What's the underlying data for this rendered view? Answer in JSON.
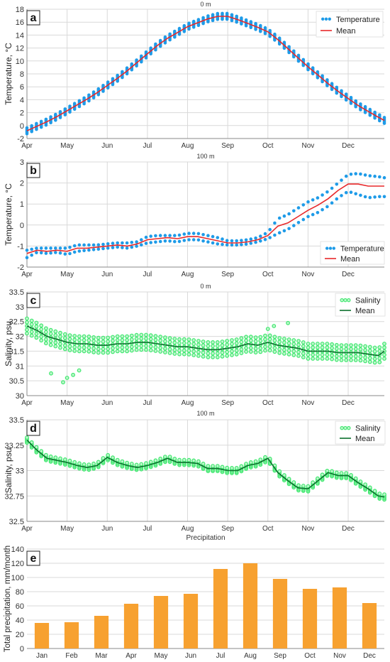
{
  "chart_data": [
    {
      "panel": "a",
      "type": "scatter",
      "title": "0 m",
      "ylabel": "Temperature, °C",
      "ylim": [
        -2,
        18
      ],
      "yticks": [
        -2,
        0,
        2,
        4,
        6,
        8,
        10,
        12,
        14,
        16,
        18
      ],
      "xticklabels": [
        "Apr",
        "May",
        "Jun",
        "Jul",
        "Aug",
        "Sep",
        "Oct",
        "Nov",
        "Dec"
      ],
      "xlim": [
        0,
        8.9
      ],
      "grid": true,
      "legend": "top-right",
      "colors": {
        "points": "#1e9be8",
        "line": "#e8282a"
      },
      "series": [
        {
          "name": "Temperature",
          "kind": "points",
          "spread": 0.9
        },
        {
          "name": "Mean",
          "kind": "line",
          "x": [
            0,
            0.25,
            0.5,
            0.75,
            1,
            1.25,
            1.5,
            1.75,
            2,
            2.25,
            2.5,
            2.75,
            3,
            3.25,
            3.5,
            3.75,
            4,
            4.25,
            4.5,
            4.75,
            5,
            5.25,
            5.5,
            5.75,
            6,
            6.25,
            6.5,
            6.75,
            7,
            7.25,
            7.5,
            7.75,
            8,
            8.25,
            8.5,
            8.75,
            8.9
          ],
          "y": [
            -0.8,
            -0.1,
            0.6,
            1.4,
            2.3,
            3.2,
            4.1,
            5.1,
            6.2,
            7.3,
            8.5,
            9.8,
            11.1,
            12.4,
            13.5,
            14.4,
            15.3,
            15.9,
            16.5,
            16.9,
            16.9,
            16.4,
            15.8,
            15.2,
            14.5,
            13.3,
            11.9,
            10.5,
            9.1,
            7.8,
            6.5,
            5.3,
            4.2,
            3.1,
            2.2,
            1.3,
            0.8
          ]
        }
      ]
    },
    {
      "panel": "b",
      "type": "scatter",
      "title": "100 m",
      "ylabel": "Temperature, °C",
      "ylim": [
        -2,
        3
      ],
      "yticks": [
        -2,
        -1,
        0,
        1,
        2,
        3
      ],
      "xticklabels": [
        "Apr",
        "May",
        "Jun",
        "Jul",
        "Aug",
        "Sep",
        "Oct",
        "Nov",
        "Dec"
      ],
      "xlim": [
        0,
        8.9
      ],
      "grid": true,
      "legend": "bottom-right",
      "colors": {
        "points": "#1e9be8",
        "line": "#e8282a"
      },
      "series": [
        {
          "name": "Temperature",
          "kind": "points",
          "spread": 0.15
        },
        {
          "name": "Mean",
          "kind": "line",
          "x": [
            0,
            0.25,
            0.5,
            0.75,
            1,
            1.25,
            1.5,
            1.75,
            2,
            2.25,
            2.5,
            2.75,
            3,
            3.25,
            3.5,
            3.75,
            4,
            4.25,
            4.5,
            4.75,
            5,
            5.25,
            5.5,
            5.75,
            6,
            6.25,
            6.5,
            6.75,
            7,
            7.25,
            7.5,
            7.75,
            8,
            8.25,
            8.5,
            8.75,
            8.9
          ],
          "y": [
            -1.35,
            -1.2,
            -1.25,
            -1.2,
            -1.25,
            -1.1,
            -1.1,
            -1.05,
            -1.0,
            -0.95,
            -1.0,
            -0.9,
            -0.7,
            -0.65,
            -0.6,
            -0.65,
            -0.55,
            -0.55,
            -0.65,
            -0.75,
            -0.85,
            -0.85,
            -0.8,
            -0.7,
            -0.5,
            -0.05,
            0.1,
            0.4,
            0.7,
            0.95,
            1.25,
            1.65,
            1.95,
            1.95,
            1.85,
            1.85,
            1.85
          ],
          "upper": [
            -1.2,
            -1.1,
            -1.1,
            -1.1,
            -1.1,
            -0.95,
            -0.95,
            -0.95,
            -0.9,
            -0.85,
            -0.85,
            -0.8,
            -0.55,
            -0.5,
            -0.5,
            -0.5,
            -0.4,
            -0.4,
            -0.5,
            -0.6,
            -0.75,
            -0.75,
            -0.7,
            -0.6,
            -0.35,
            0.3,
            0.5,
            0.8,
            1.1,
            1.3,
            1.6,
            2.0,
            2.4,
            2.45,
            2.35,
            2.3,
            2.25
          ],
          "lower": [
            -1.55,
            -1.3,
            -1.35,
            -1.3,
            -1.4,
            -1.25,
            -1.2,
            -1.15,
            -1.1,
            -1.05,
            -1.1,
            -1.0,
            -0.85,
            -0.8,
            -0.75,
            -0.8,
            -0.7,
            -0.7,
            -0.8,
            -0.9,
            -0.95,
            -0.95,
            -0.9,
            -0.8,
            -0.65,
            -0.4,
            -0.2,
            0.1,
            0.4,
            0.6,
            0.9,
            1.3,
            1.6,
            1.45,
            1.3,
            1.35,
            1.35
          ]
        }
      ]
    },
    {
      "panel": "c",
      "type": "scatter",
      "title": "0 m",
      "ylabel": "Salinity, psu",
      "ylim": [
        30,
        33.5
      ],
      "yticks": [
        30,
        30.5,
        31,
        31.5,
        32,
        32.5,
        33,
        33.5
      ],
      "xticklabels": [
        "Apr",
        "May",
        "Jun",
        "Jul",
        "Aug",
        "Sep",
        "Oct",
        "Nov",
        "Dec"
      ],
      "xlim": [
        0,
        8.9
      ],
      "grid": true,
      "legend": "top-right",
      "colors": {
        "points": "#3ee86e",
        "line": "#0a6f2c"
      },
      "series": [
        {
          "name": "Salinity",
          "kind": "points",
          "spread": 0.5,
          "outliers": [
            [
              0.6,
              30.75
            ],
            [
              0.9,
              30.45
            ],
            [
              1.0,
              30.6
            ],
            [
              1.15,
              30.7
            ],
            [
              1.3,
              30.85
            ],
            [
              6.0,
              32.25
            ],
            [
              6.15,
              32.35
            ],
            [
              6.5,
              32.45
            ]
          ]
        },
        {
          "name": "Mean",
          "kind": "line",
          "x": [
            0,
            0.25,
            0.5,
            0.75,
            1,
            1.25,
            1.5,
            1.75,
            2,
            2.25,
            2.5,
            2.75,
            3,
            3.25,
            3.5,
            3.75,
            4,
            4.25,
            4.5,
            4.75,
            5,
            5.25,
            5.5,
            5.75,
            6,
            6.25,
            6.5,
            6.75,
            7,
            7.25,
            7.5,
            7.75,
            8,
            8.25,
            8.5,
            8.75,
            8.9
          ],
          "y": [
            32.35,
            32.2,
            32.0,
            31.9,
            31.8,
            31.75,
            31.75,
            31.7,
            31.7,
            31.75,
            31.75,
            31.8,
            31.8,
            31.75,
            31.7,
            31.65,
            31.65,
            31.6,
            31.55,
            31.55,
            31.6,
            31.65,
            31.75,
            31.7,
            31.8,
            31.7,
            31.65,
            31.6,
            31.5,
            31.5,
            31.5,
            31.45,
            31.45,
            31.45,
            31.4,
            31.35,
            31.5
          ]
        }
      ]
    },
    {
      "panel": "d",
      "type": "scatter",
      "title": "100 m",
      "ylabel": "Salinity, psu",
      "xlabel": "Precipitation",
      "ylim": [
        32.5,
        33.5
      ],
      "yticks": [
        32.5,
        32.75,
        33,
        33.25,
        33.5
      ],
      "xticklabels": [
        "Apr",
        "May",
        "Jun",
        "Jul",
        "Aug",
        "Sep",
        "Oct",
        "Nov",
        "Dec"
      ],
      "xlim": [
        0,
        8.9
      ],
      "grid": true,
      "legend": "top-right",
      "colors": {
        "points": "#3ee86e",
        "line": "#0a6f2c"
      },
      "series": [
        {
          "name": "Salinity",
          "kind": "points",
          "spread": 0.05
        },
        {
          "name": "Mean",
          "kind": "line",
          "x": [
            0,
            0.25,
            0.5,
            0.75,
            1,
            1.25,
            1.5,
            1.75,
            2,
            2.25,
            2.5,
            2.75,
            3,
            3.25,
            3.5,
            3.75,
            4,
            4.25,
            4.5,
            4.75,
            5,
            5.25,
            5.5,
            5.75,
            6,
            6.25,
            6.5,
            6.75,
            7,
            7.25,
            7.5,
            7.75,
            8,
            8.25,
            8.5,
            8.75,
            8.9
          ],
          "y": [
            33.3,
            33.2,
            33.12,
            33.1,
            33.08,
            33.05,
            33.03,
            33.05,
            33.13,
            33.08,
            33.05,
            33.03,
            33.05,
            33.08,
            33.12,
            33.08,
            33.08,
            33.07,
            33.02,
            33.02,
            33.0,
            33.0,
            33.05,
            33.07,
            33.12,
            32.98,
            32.9,
            32.83,
            32.82,
            32.9,
            32.98,
            32.95,
            32.95,
            32.88,
            32.82,
            32.75,
            32.74
          ]
        }
      ]
    },
    {
      "panel": "e",
      "type": "bar",
      "ylabel": "Total precipitation, mm/month",
      "ylim": [
        0,
        140
      ],
      "yticks": [
        0,
        20,
        40,
        60,
        80,
        100,
        120,
        140
      ],
      "categories": [
        "Jan",
        "Feb",
        "Mar",
        "Apr",
        "May",
        "Jun",
        "Jul",
        "Aug",
        "Sep",
        "Oct",
        "Nov",
        "Dec"
      ],
      "values": [
        36,
        37,
        46,
        63,
        74,
        77,
        112,
        120,
        98,
        84,
        86,
        64
      ],
      "grid": true,
      "colors": {
        "bars": "#f7a130"
      }
    }
  ]
}
